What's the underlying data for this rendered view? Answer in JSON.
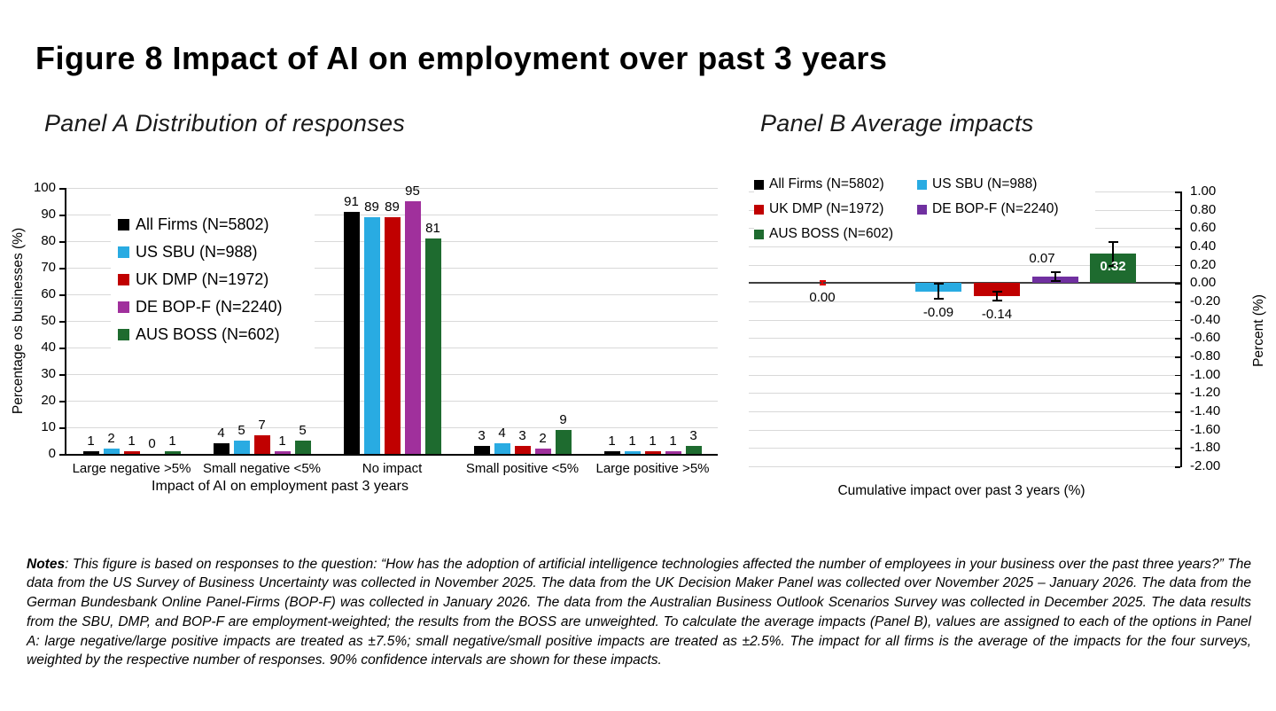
{
  "figure": {
    "title": "Figure 8 Impact of AI on employment over past 3 years"
  },
  "chart_data": [
    {
      "panel": "A",
      "type": "bar",
      "title": "Panel A Distribution of responses",
      "xlabel": "Impact of AI on employment past 3 years",
      "ylabel": "Percentage os businesses (%)",
      "ylim": [
        0,
        100
      ],
      "ytick_step": 10,
      "grid": true,
      "legend_position": "upper-left-inside",
      "categories": [
        "Large negative >5%",
        "Small negative <5%",
        "No impact",
        "Small positive <5%",
        "Large positive >5%"
      ],
      "series": [
        {
          "name": "All Firms (N=5802)",
          "color": "#000000",
          "values": [
            1,
            4,
            91,
            3,
            1
          ]
        },
        {
          "name": "US SBU (N=988)",
          "color": "#29ABE2",
          "values": [
            2,
            5,
            89,
            4,
            1
          ]
        },
        {
          "name": "UK DMP (N=1972)",
          "color": "#C00000",
          "values": [
            1,
            7,
            89,
            3,
            1
          ]
        },
        {
          "name": "DE BOP-F (N=2240)",
          "color": "#A0309C",
          "values": [
            0,
            1,
            95,
            2,
            1
          ]
        },
        {
          "name": "AUS BOSS (N=602)",
          "color": "#1E6B2F",
          "values": [
            1,
            5,
            81,
            9,
            3
          ]
        }
      ]
    },
    {
      "panel": "B",
      "type": "bar",
      "title": "Panel B Average impacts",
      "xlabel": "Cumulative impact over past 3 years (%)",
      "ylabel": "Percent (%)",
      "ylim": [
        -2.0,
        1.0
      ],
      "ytick_step": 0.2,
      "grid": true,
      "legend_position": "upper-left-inside",
      "categories": [
        "All Firms (N=5802)",
        "US SBU (N=988)",
        "UK DMP (N=1972)",
        "DE BOP-F (N=2240)",
        "AUS BOSS (N=602)"
      ],
      "values": [
        0.0,
        -0.09,
        -0.14,
        0.07,
        0.32
      ],
      "value_labels": [
        "0.00",
        "-0.09",
        "-0.14",
        "0.07",
        "0.32"
      ],
      "ci_low": [
        -0.02,
        -0.17,
        -0.19,
        0.02,
        0.19
      ],
      "ci_high": [
        0.02,
        -0.01,
        -0.09,
        0.12,
        0.45
      ],
      "colors": [
        "#000000",
        "#29ABE2",
        "#C00000",
        "#7030A0",
        "#1E6B2F"
      ],
      "error_bar_colors": [
        "#E00000",
        "#000000",
        "#000000",
        "#000000",
        "#000000"
      ]
    }
  ],
  "notes": {
    "label": "Notes",
    "body": ": This figure is based on responses to the question: “How has the adoption of artificial intelligence technologies affected the number of employees in your business over the past three years?” The data from the US Survey of Business Uncertainty was collected in November 2025. The data from the UK Decision Maker Panel was collected over November 2025 – January 2026. The data from the German Bundesbank Online Panel-Firms (BOP-F) was collected in January 2026.  The data from the Australian Business Outlook Scenarios Survey was collected in December 2025. The data results from the SBU, DMP, and BOP-F are employment-weighted; the results from the BOSS are unweighted. To calculate the average impacts (Panel B), values are assigned to each of the options in Panel A: large negative/large positive impacts are treated as ±7.5%; small negative/small positive impacts are treated as ±2.5%. The impact for all firms is the average of the impacts for the four surveys, weighted by the respective number of responses. 90% confidence intervals are shown for these impacts."
  }
}
